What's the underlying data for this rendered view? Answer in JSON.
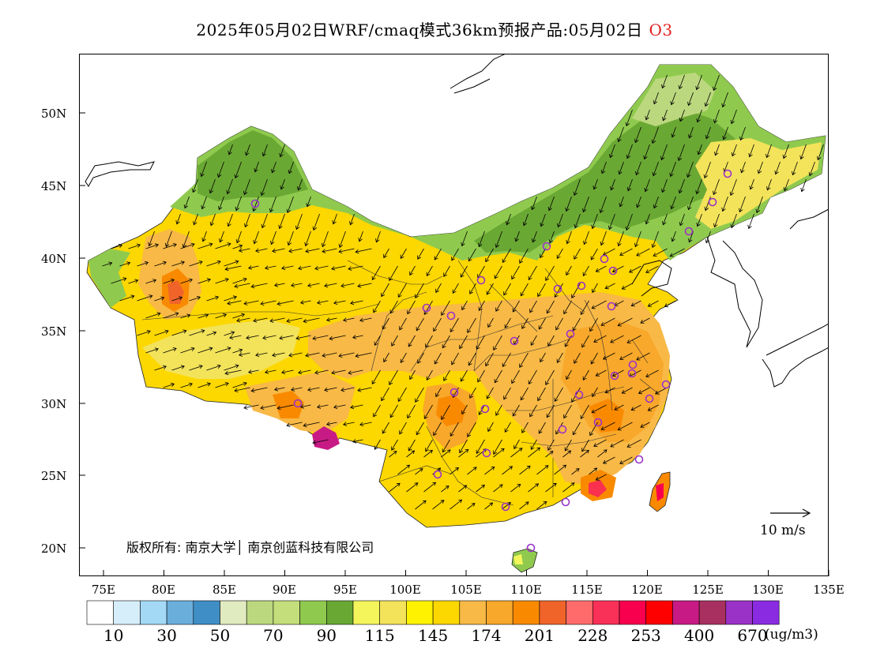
{
  "title": {
    "main": "2025年05月02日WRF/cmaq模式36km预报产品:05月02日",
    "pollutant": "O3"
  },
  "axes": {
    "y_labels": [
      "50N",
      "45N",
      "40N",
      "35N",
      "30N",
      "25N",
      "20N"
    ],
    "x_labels": [
      "75E",
      "80E",
      "85E",
      "90E",
      "95E",
      "100E",
      "105E",
      "110E",
      "115E",
      "120E",
      "125E",
      "130E",
      "135E"
    ]
  },
  "copyright": "版权所有: 南京大学│ 南京创蓝科技有限公司",
  "wind_scale": {
    "label": "10 m/s"
  },
  "legend": {
    "colors": [
      "#ffffff",
      "#d6eefa",
      "#a3d9f5",
      "#6aaedc",
      "#3f8ec6",
      "#e1ebc0",
      "#bcd87e",
      "#c3de7a",
      "#8fca4e",
      "#6aa834",
      "#f3f55a",
      "#f3e35a",
      "#fef200",
      "#fcd700",
      "#f8b946",
      "#f8a82a",
      "#f98a00",
      "#f0642a",
      "#ff6b6b",
      "#f93058",
      "#f9004e",
      "#ff0000",
      "#c81a84",
      "#a83060",
      "#9b32c8",
      "#8a2be2"
    ],
    "tick_labels": [
      "10",
      "30",
      "50",
      "70",
      "90",
      "115",
      "145",
      "174",
      "201",
      "228",
      "253",
      "400",
      "670"
    ],
    "unit": "(ug/m3)"
  },
  "map_colors": {
    "green_dark": "#6aa834",
    "green_light": "#8fca4e",
    "green_pale": "#bcd87e",
    "yellow": "#fef200",
    "yellow_gold": "#fcd700",
    "yellow_pale": "#f3e35a",
    "orange_light": "#f8b946",
    "orange": "#f8a82a",
    "orange_dark": "#f98a00",
    "red": "#f9004e",
    "magenta": "#c81a84",
    "station_circle": "#9b32c8"
  }
}
